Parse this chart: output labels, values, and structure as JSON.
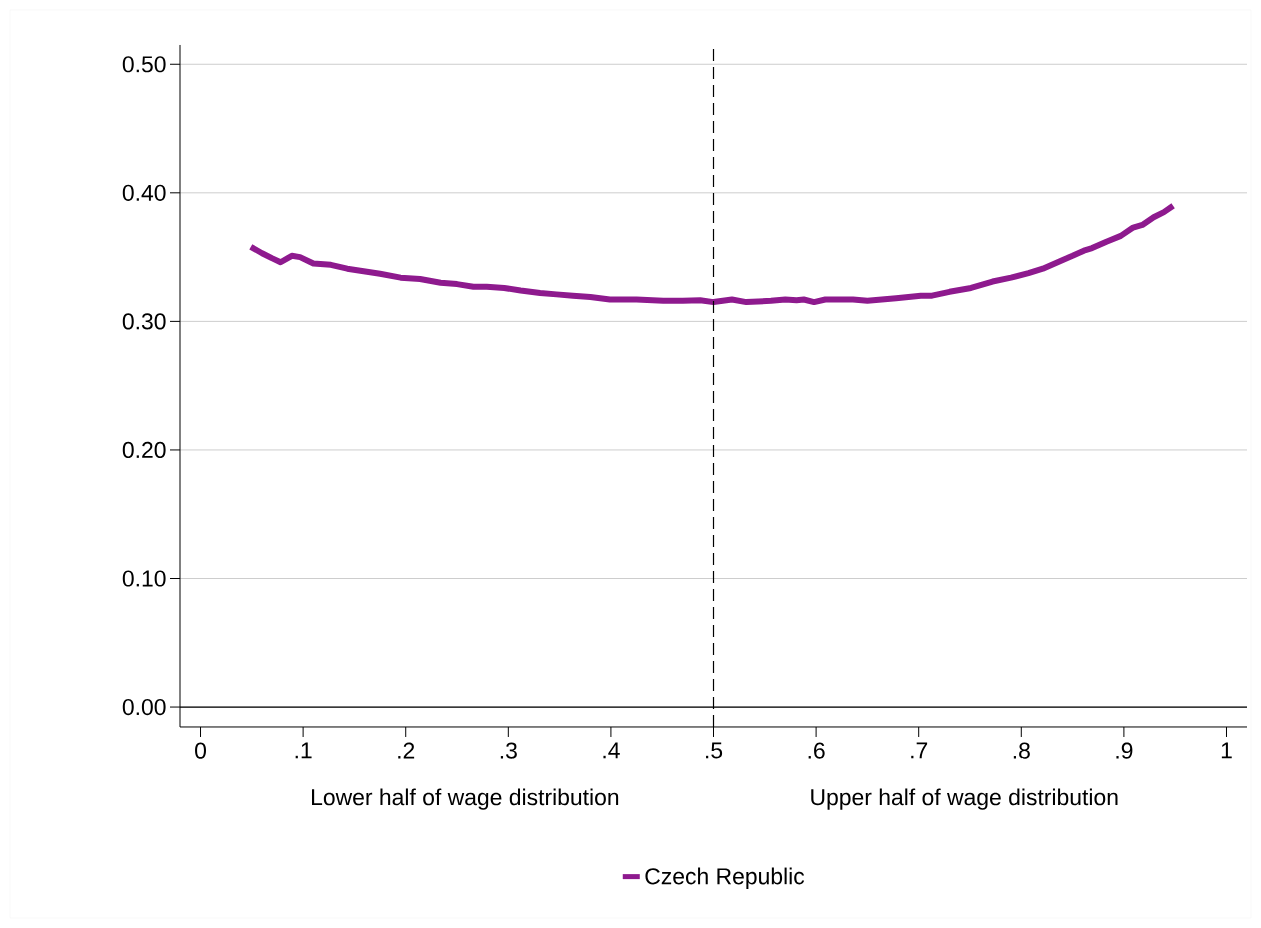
{
  "chart_data": {
    "type": "line",
    "annotations": [
      "Lower half of wage distribution",
      "Upper half of wage distribution"
    ],
    "x": [
      0.049,
      0.06,
      0.07,
      0.078,
      0.089,
      0.097,
      0.11,
      0.127,
      0.143,
      0.159,
      0.175,
      0.195,
      0.214,
      0.234,
      0.25,
      0.266,
      0.279,
      0.296,
      0.312,
      0.331,
      0.347,
      0.363,
      0.38,
      0.399,
      0.425,
      0.451,
      0.47,
      0.487,
      0.5,
      0.518,
      0.532,
      0.556,
      0.57,
      0.581,
      0.588,
      0.598,
      0.609,
      0.636,
      0.65,
      0.678,
      0.702,
      0.713,
      0.73,
      0.751,
      0.772,
      0.79,
      0.807,
      0.821,
      0.841,
      0.85,
      0.861,
      0.869,
      0.883,
      0.897,
      0.909,
      0.918,
      0.929,
      0.939,
      0.948
    ],
    "series": [
      {
        "name": "Czech Republic",
        "color": "#8e1a8e",
        "values": [
          0.358,
          0.353,
          0.349,
          0.346,
          0.351,
          0.35,
          0.345,
          0.344,
          0.341,
          0.339,
          0.337,
          0.334,
          0.333,
          0.33,
          0.329,
          0.327,
          0.327,
          0.326,
          0.324,
          0.322,
          0.321,
          0.32,
          0.319,
          0.317,
          0.317,
          0.316,
          0.316,
          0.3165,
          0.315,
          0.317,
          0.315,
          0.316,
          0.317,
          0.3165,
          0.317,
          0.315,
          0.317,
          0.317,
          0.316,
          0.318,
          0.32,
          0.32,
          0.323,
          0.326,
          0.331,
          0.334,
          0.3375,
          0.341,
          0.348,
          0.351,
          0.355,
          0.357,
          0.362,
          0.3665,
          0.373,
          0.375,
          0.381,
          0.385,
          0.39
        ]
      }
    ],
    "xlim": [
      -0.02,
      1.02
    ],
    "ylim": [
      -0.0155,
      0.515
    ],
    "xticks": [
      0,
      {
        "value": 0.1,
        "label": ".1"
      },
      {
        "value": 0.2,
        "label": ".2"
      },
      {
        "value": 0.3,
        "label": ".3"
      },
      {
        "value": 0.4,
        "label": ".4"
      },
      {
        "value": 0.5,
        "label": ".5"
      },
      {
        "value": 0.6,
        "label": ".6"
      },
      {
        "value": 0.7,
        "label": ".7"
      },
      {
        "value": 0.8,
        "label": ".8"
      },
      {
        "value": 0.9,
        "label": ".9"
      },
      1
    ],
    "yticks": [
      {
        "value": 0,
        "label": "0.00"
      },
      {
        "value": 0.1,
        "label": "0.10"
      },
      {
        "value": 0.2,
        "label": "0.20"
      },
      {
        "value": 0.3,
        "label": "0.30"
      },
      {
        "value": 0.4,
        "label": "0.40"
      },
      {
        "value": 0.5,
        "label": "0.50"
      }
    ],
    "grid": "y",
    "legend": "bottom",
    "marker": "none",
    "line_style": "solid",
    "ref_lines": [
      {
        "axis": "y",
        "value": 0,
        "color": "#000000",
        "line_style": "solid"
      },
      {
        "axis": "x",
        "value": 0.5,
        "color": "#000000",
        "line_style": "dashed"
      }
    ]
  }
}
